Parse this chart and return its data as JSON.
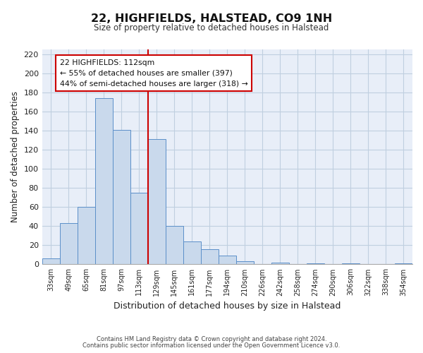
{
  "title": "22, HIGHFIELDS, HALSTEAD, CO9 1NH",
  "subtitle": "Size of property relative to detached houses in Halstead",
  "xlabel": "Distribution of detached houses by size in Halstead",
  "ylabel": "Number of detached properties",
  "bar_labels": [
    "33sqm",
    "49sqm",
    "65sqm",
    "81sqm",
    "97sqm",
    "113sqm",
    "129sqm",
    "145sqm",
    "161sqm",
    "177sqm",
    "194sqm",
    "210sqm",
    "226sqm",
    "242sqm",
    "258sqm",
    "274sqm",
    "290sqm",
    "306sqm",
    "322sqm",
    "338sqm",
    "354sqm"
  ],
  "bar_values": [
    6,
    43,
    60,
    174,
    141,
    75,
    131,
    40,
    24,
    16,
    9,
    3,
    0,
    2,
    0,
    1,
    0,
    1,
    0,
    0,
    1
  ],
  "bar_color": "#c9d9ec",
  "bar_edge_color": "#5b8fc9",
  "vline_x": 5.5,
  "vline_color": "#cc0000",
  "annotation_title": "22 HIGHFIELDS: 112sqm",
  "annotation_line1": "← 55% of detached houses are smaller (397)",
  "annotation_line2": "44% of semi-detached houses are larger (318) →",
  "annotation_box_color": "#ffffff",
  "annotation_box_edge": "#cc0000",
  "ylim": [
    0,
    225
  ],
  "yticks": [
    0,
    20,
    40,
    60,
    80,
    100,
    120,
    140,
    160,
    180,
    200,
    220
  ],
  "footer1": "Contains HM Land Registry data © Crown copyright and database right 2024.",
  "footer2": "Contains public sector information licensed under the Open Government Licence v3.0.",
  "bg_color": "#ffffff",
  "grid_color": "#c0cfe0",
  "plot_bg_color": "#e8eef8"
}
